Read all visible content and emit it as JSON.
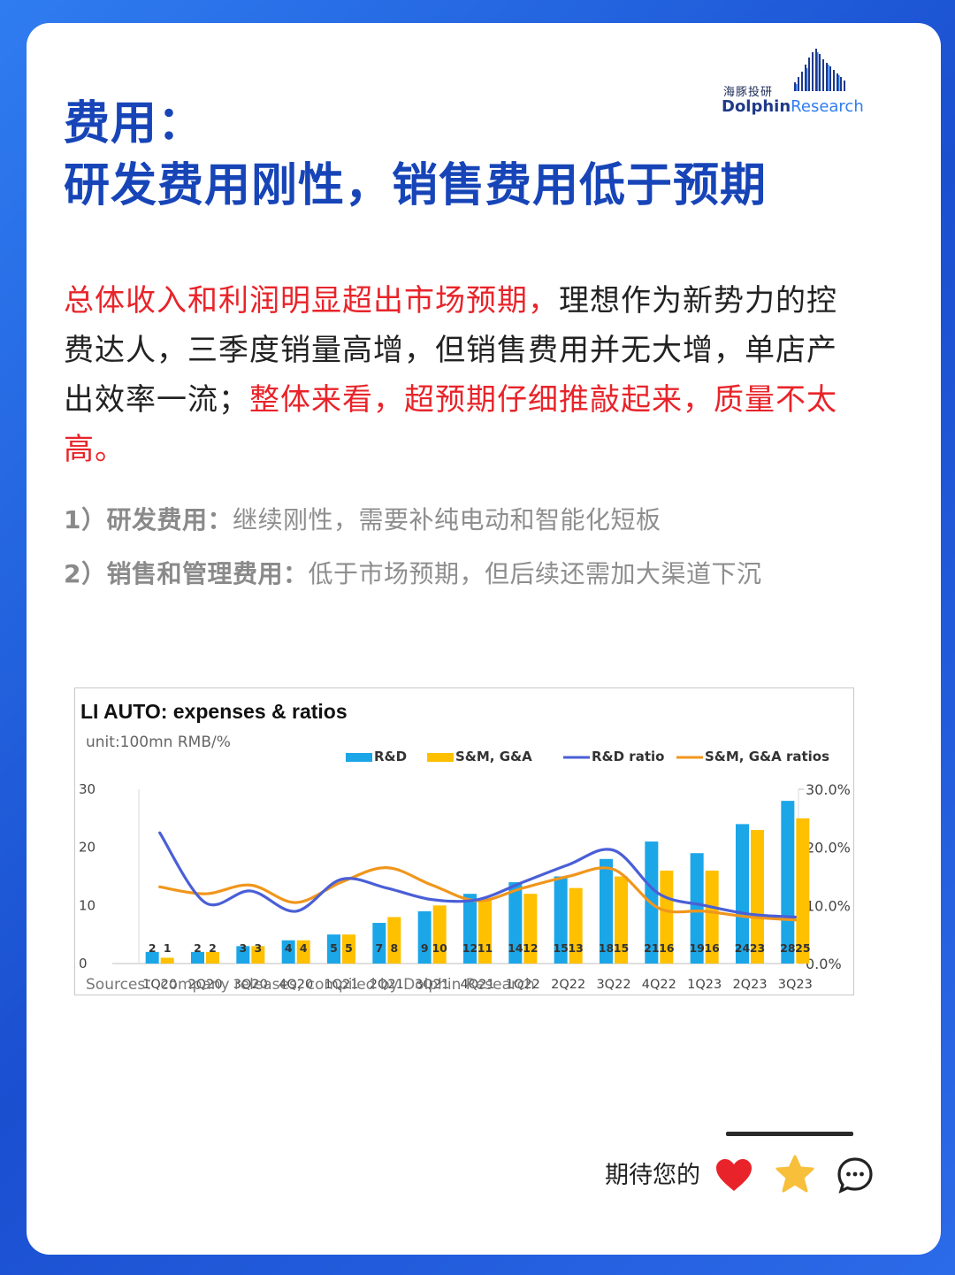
{
  "logo": {
    "cn": "海豚投研",
    "en_a": "Dolphin",
    "en_b": "Research"
  },
  "title": {
    "line1": "费用：",
    "line2": "研发费用刚性，销售费用低于预期"
  },
  "intro": {
    "red1": "总体收入和利润明显超出市场预期，",
    "black1": "理想作为新势力的控费达人，三季度销量高增，但销售费用并无大增，单店产出效率一流；",
    "red2": "整体来看，超预期仔细推敲起来，质量不太高。"
  },
  "points": [
    {
      "label": "1）研发费用：",
      "text": "继续刚性，需要补纯电动和智能化短板"
    },
    {
      "label": "2）销售和管理费用：",
      "text": "低于市场预期，但后续还需加大渠道下沉"
    }
  ],
  "footer": {
    "text": "期待您的"
  },
  "icons": [
    "heart-icon",
    "star-icon",
    "comment-icon"
  ],
  "colors": {
    "title": "#1745b8",
    "red": "#e8242a",
    "rd": "#1ba6e8",
    "sm": "#ffc000",
    "rd_line": "#4a5fd6",
    "sm_line": "#f0961c"
  },
  "chart_data": {
    "type": "bar",
    "title": "LI AUTO: expenses & ratios",
    "unit": "unit:100mn RMB/%",
    "source": "Sources：company releases, compiled by  Dolphin Research",
    "categories": [
      "1Q20",
      "2Q20",
      "3Q20",
      "4Q20",
      "1Q21",
      "2Q21",
      "3Q21",
      "4Q21",
      "1Q22",
      "2Q22",
      "3Q22",
      "4Q22",
      "1Q23",
      "2Q23",
      "3Q23"
    ],
    "series": [
      {
        "name": "R&D",
        "kind": "bar",
        "axis": "left",
        "values": [
          2,
          2,
          3,
          4,
          5,
          7,
          9,
          12,
          14,
          15,
          18,
          21,
          19,
          24,
          28
        ]
      },
      {
        "name": "S&M, G&A",
        "kind": "bar",
        "axis": "left",
        "values": [
          1,
          2,
          3,
          4,
          5,
          8,
          10,
          11,
          12,
          13,
          15,
          16,
          16,
          23,
          25
        ]
      },
      {
        "name": "R&D ratio",
        "kind": "line",
        "axis": "right",
        "values": [
          22.5,
          10.5,
          12.5,
          9.0,
          14.5,
          13.0,
          11.0,
          11.0,
          14.0,
          17.0,
          19.5,
          12.0,
          10.0,
          8.5,
          8.0
        ]
      },
      {
        "name": "S&M, G&A ratios",
        "kind": "line",
        "axis": "right",
        "values": [
          13.2,
          12.0,
          13.5,
          10.5,
          14.0,
          16.5,
          13.5,
          10.8,
          13.0,
          15.0,
          16.2,
          9.5,
          9.0,
          8.0,
          7.5
        ]
      }
    ],
    "bar_labels": {
      "rd": [
        "2",
        "2",
        "3",
        "4",
        "5",
        "7",
        "9",
        "12",
        "14",
        "15",
        "18",
        "21",
        "19",
        "24",
        "28"
      ],
      "sm": [
        "1",
        "2",
        "3",
        "4",
        "5",
        "8",
        "10",
        "11",
        "12",
        "13",
        "15",
        "16",
        "16",
        "23",
        "25"
      ]
    },
    "ylim_left": [
      0,
      30
    ],
    "yticks_left": [
      "0",
      "10",
      "20",
      "30"
    ],
    "ylim_right": [
      0,
      30
    ],
    "yticks_right": [
      "0.0%",
      "10.0%",
      "20.0%",
      "30.0%"
    ],
    "legend": "top"
  }
}
